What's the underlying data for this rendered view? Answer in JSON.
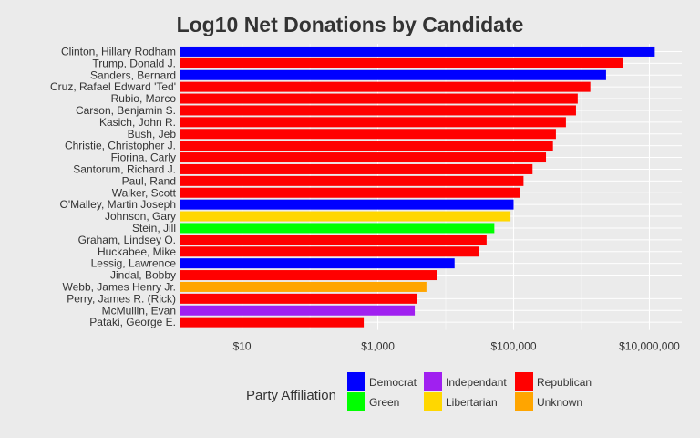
{
  "chart_data": {
    "type": "bar",
    "orientation": "horizontal",
    "title": "Log10 Net Donations by Candidate",
    "x_scale": "log10",
    "x_ticks": [
      {
        "value": 10,
        "label": "$10"
      },
      {
        "value": 1000,
        "label": "$1,000"
      },
      {
        "value": 100000,
        "label": "$100,000"
      },
      {
        "value": 10000000,
        "label": "$10,000,000"
      }
    ],
    "xlim": [
      1.2,
      30000000
    ],
    "grid": true,
    "legend": {
      "title": "Party Affiliation",
      "placement": "bottom",
      "entries": [
        {
          "party": "Democrat",
          "color": "#0000ff"
        },
        {
          "party": "Independant",
          "color": "#a020f0"
        },
        {
          "party": "Republican",
          "color": "#ff0000"
        },
        {
          "party": "Green",
          "color": "#00ff00"
        },
        {
          "party": "Libertarian",
          "color": "#ffd700"
        },
        {
          "party": "Unknown",
          "color": "#ffa500"
        }
      ]
    },
    "bars": [
      {
        "candidate": "Clinton, Hillary Rodham",
        "party": "Democrat",
        "value": 12000000
      },
      {
        "candidate": "Trump, Donald J.",
        "party": "Republican",
        "value": 4100000
      },
      {
        "candidate": "Sanders, Bernard",
        "party": "Democrat",
        "value": 2300000
      },
      {
        "candidate": "Cruz, Rafael Edward 'Ted'",
        "party": "Republican",
        "value": 1350000
      },
      {
        "candidate": "Rubio, Marco",
        "party": "Republican",
        "value": 880000
      },
      {
        "candidate": "Carson, Benjamin S.",
        "party": "Republican",
        "value": 830000
      },
      {
        "candidate": "Kasich, John R.",
        "party": "Republican",
        "value": 590000
      },
      {
        "candidate": "Bush, Jeb",
        "party": "Republican",
        "value": 420000
      },
      {
        "candidate": "Christie, Christopher J.",
        "party": "Republican",
        "value": 380000
      },
      {
        "candidate": "Fiorina, Carly",
        "party": "Republican",
        "value": 300000
      },
      {
        "candidate": "Santorum, Richard J.",
        "party": "Republican",
        "value": 190000
      },
      {
        "candidate": "Paul, Rand",
        "party": "Republican",
        "value": 140000
      },
      {
        "candidate": "Walker, Scott",
        "party": "Republican",
        "value": 125000
      },
      {
        "candidate": "O'Malley, Martin Joseph",
        "party": "Democrat",
        "value": 100000
      },
      {
        "candidate": "Johnson, Gary",
        "party": "Libertarian",
        "value": 90000
      },
      {
        "candidate": "Stein, Jill",
        "party": "Green",
        "value": 52000
      },
      {
        "candidate": "Graham, Lindsey O.",
        "party": "Republican",
        "value": 40000
      },
      {
        "candidate": "Huckabee, Mike",
        "party": "Republican",
        "value": 31000
      },
      {
        "candidate": "Lessig, Lawrence",
        "party": "Democrat",
        "value": 13500
      },
      {
        "candidate": "Jindal, Bobby",
        "party": "Republican",
        "value": 7500
      },
      {
        "candidate": "Webb, James Henry Jr.",
        "party": "Unknown",
        "value": 5200
      },
      {
        "candidate": "Perry, James R. (Rick)",
        "party": "Republican",
        "value": 3800
      },
      {
        "candidate": "McMullin, Evan",
        "party": "Independant",
        "value": 3500
      },
      {
        "candidate": "Pataki, George E.",
        "party": "Republican",
        "value": 620
      }
    ]
  }
}
